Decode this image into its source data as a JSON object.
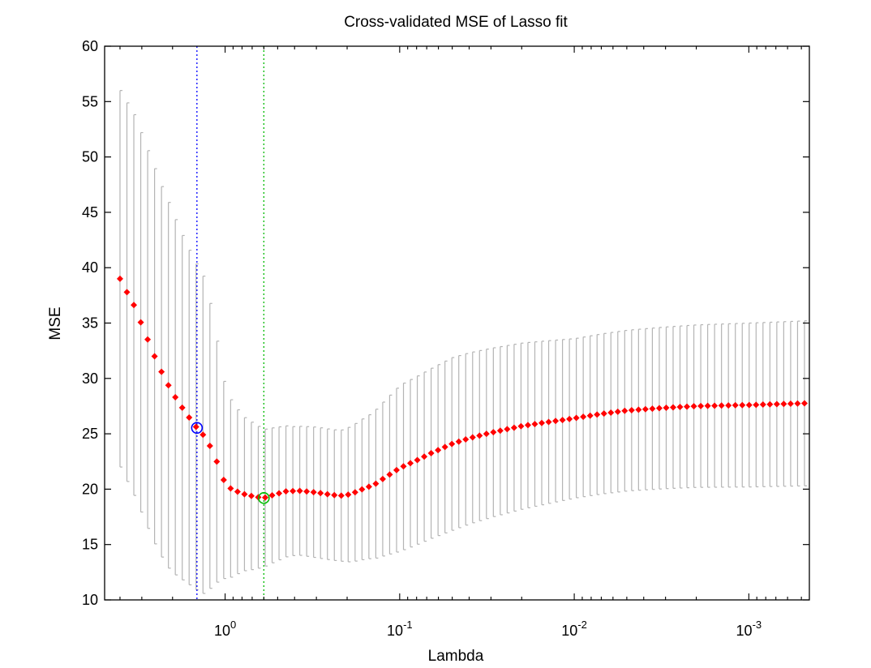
{
  "chart_data": {
    "type": "scatter",
    "title": "Cross-validated MSE of Lasso fit",
    "xlabel": "Lambda",
    "ylabel": "MSE",
    "x_scale": "log",
    "x_reversed": true,
    "xlim": [
      4.9,
      0.00045
    ],
    "ylim": [
      10,
      60
    ],
    "yticks": [
      10,
      15,
      20,
      25,
      30,
      35,
      40,
      45,
      50,
      55,
      60
    ],
    "xticks": [
      {
        "value": 1,
        "base": "10",
        "exp": "0"
      },
      {
        "value": 0.1,
        "base": "10",
        "exp": "-1"
      },
      {
        "value": 0.01,
        "base": "10",
        "exp": "-2"
      },
      {
        "value": 0.001,
        "base": "10",
        "exp": "-3"
      }
    ],
    "grid": false,
    "colors": {
      "mean": "#ff0000",
      "errorbar": "#b4b4b4",
      "min_line": "#00bb00",
      "se_line": "#0000ff"
    },
    "series": [
      {
        "lambda_range": [
          4.0,
          0.00048
        ],
        "points": 100,
        "mse_anchors": [
          [
            4.0,
            39.0
          ],
          [
            3.6,
            37.6
          ],
          [
            3.3,
            36.5
          ],
          [
            2.98,
            34.7
          ],
          [
            2.6,
            32.4
          ],
          [
            2.35,
            30.8
          ],
          [
            2.1,
            29.3
          ],
          [
            1.88,
            28.0
          ],
          [
            1.68,
            26.9
          ],
          [
            1.5,
            25.8
          ],
          [
            1.32,
            24.8
          ],
          [
            1.18,
            23.5
          ],
          [
            1.0,
            20.5
          ],
          [
            0.92,
            20.0
          ],
          [
            0.8,
            19.6
          ],
          [
            0.67,
            19.3
          ],
          [
            0.6,
            19.2
          ],
          [
            0.55,
            19.4
          ],
          [
            0.45,
            19.8
          ],
          [
            0.37,
            19.85
          ],
          [
            0.3,
            19.7
          ],
          [
            0.25,
            19.5
          ],
          [
            0.22,
            19.4
          ],
          [
            0.19,
            19.55
          ],
          [
            0.17,
            19.9
          ],
          [
            0.14,
            20.4
          ],
          [
            0.12,
            21.1
          ],
          [
            0.1,
            21.9
          ],
          [
            0.08,
            22.6
          ],
          [
            0.065,
            23.3
          ],
          [
            0.05,
            24.1
          ],
          [
            0.04,
            24.6
          ],
          [
            0.03,
            25.1
          ],
          [
            0.02,
            25.7
          ],
          [
            0.015,
            26.0
          ],
          [
            0.01,
            26.4
          ],
          [
            0.007,
            26.8
          ],
          [
            0.005,
            27.1
          ],
          [
            0.003,
            27.35
          ],
          [
            0.002,
            27.5
          ],
          [
            0.001,
            27.6
          ],
          [
            0.00048,
            27.75
          ]
        ],
        "se_anchors": [
          [
            4.0,
            17.0
          ],
          [
            3.3,
            17.2
          ],
          [
            2.6,
            17.0
          ],
          [
            2.1,
            16.5
          ],
          [
            1.68,
            15.3
          ],
          [
            1.3,
            14.2
          ],
          [
            1.0,
            8.5
          ],
          [
            0.8,
            7.0
          ],
          [
            0.6,
            6.2
          ],
          [
            0.4,
            5.8
          ],
          [
            0.3,
            5.9
          ],
          [
            0.22,
            5.9
          ],
          [
            0.15,
            6.5
          ],
          [
            0.1,
            7.5
          ],
          [
            0.05,
            7.8
          ],
          [
            0.02,
            7.5
          ],
          [
            0.01,
            7.2
          ],
          [
            0.003,
            7.3
          ],
          [
            0.001,
            7.4
          ],
          [
            0.00048,
            7.45
          ]
        ]
      }
    ],
    "lambda_min": 0.6,
    "lambda_1se": 1.45
  }
}
